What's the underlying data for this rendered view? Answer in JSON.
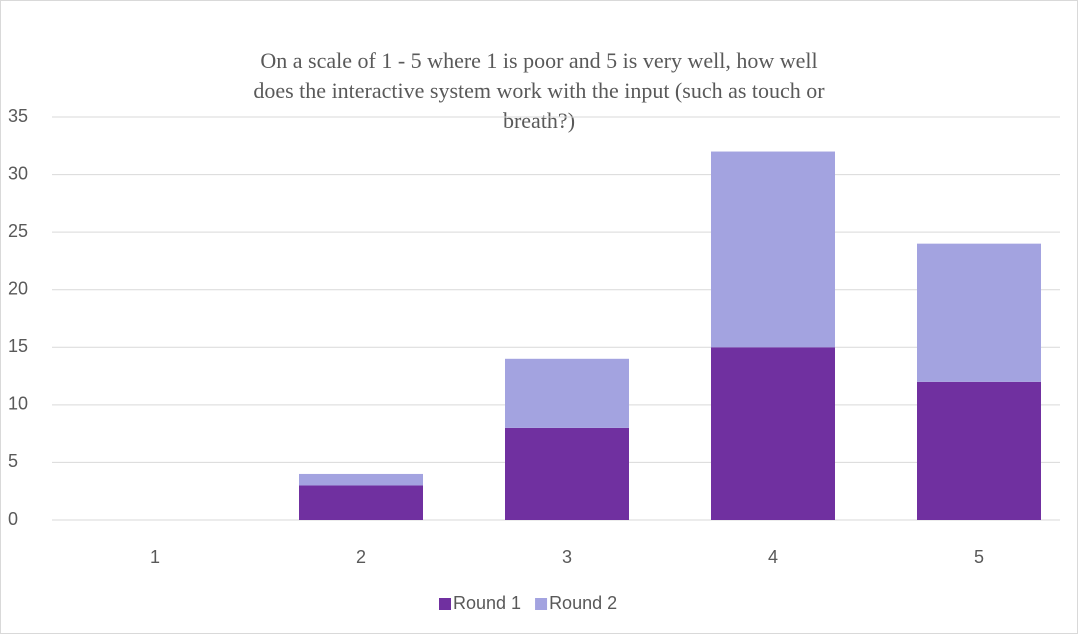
{
  "chart_data": {
    "type": "stacked_bar",
    "title": "On a scale of 1 - 5 where 1 is poor and 5 is very well, how well does the interactive system work with the input (such as touch or breath?)",
    "categories": [
      "1",
      "2",
      "3",
      "4",
      "5"
    ],
    "series": [
      {
        "name": "Round 1",
        "color": "#7030a0",
        "values": [
          0,
          3,
          8,
          15,
          12
        ]
      },
      {
        "name": "Round 2",
        "color": "#a3a3e0",
        "values": [
          0,
          1,
          6,
          17,
          12
        ]
      }
    ],
    "ylim": [
      0,
      35
    ],
    "yticks": [
      0,
      5,
      10,
      15,
      20,
      25,
      30,
      35
    ],
    "grid": true,
    "legend": "bottom"
  }
}
